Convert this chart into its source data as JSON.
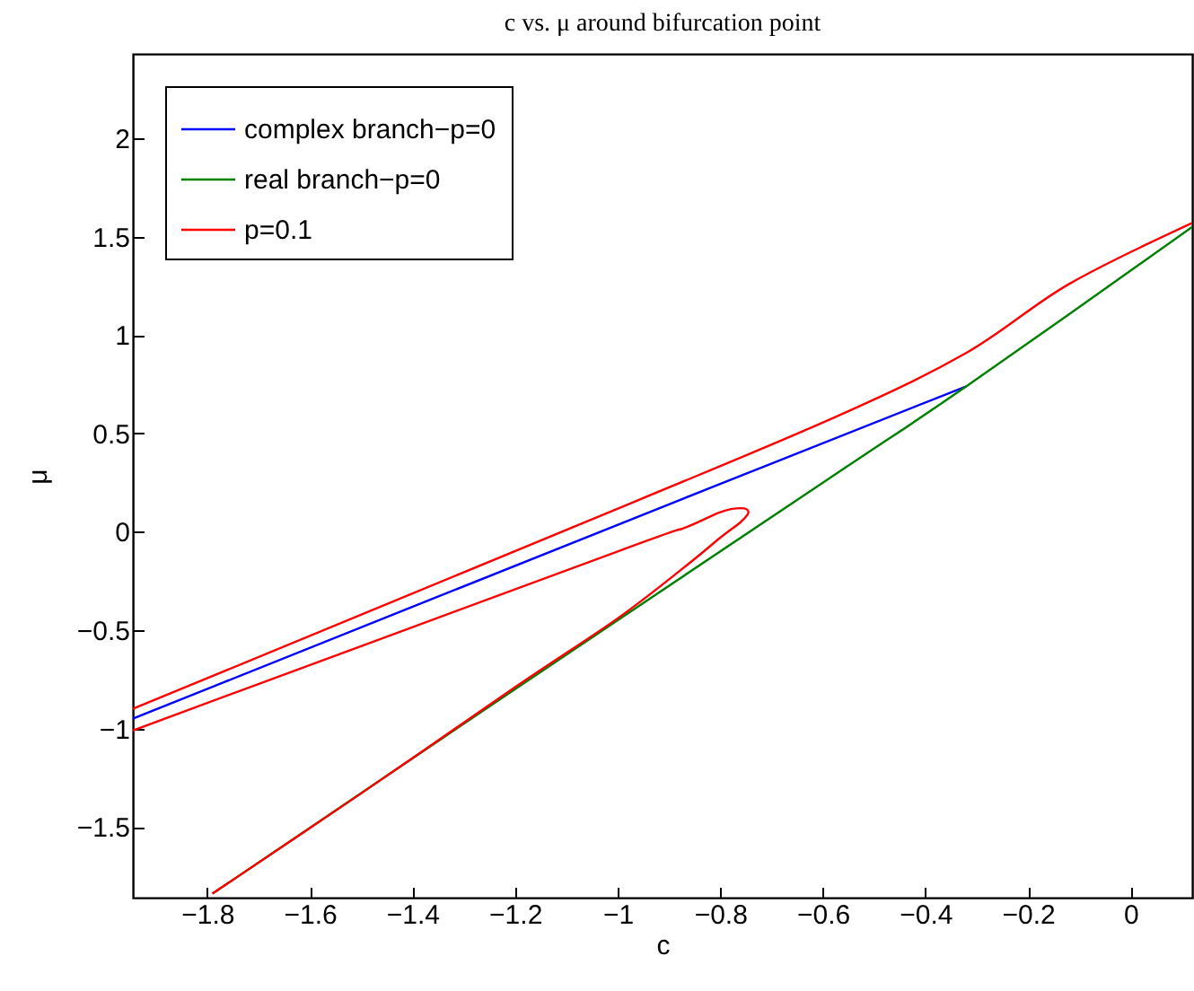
{
  "chart_data": {
    "type": "line",
    "title": "c vs. μ around bifurcation point",
    "xlabel": "c",
    "ylabel": "μ",
    "xlim": [
      -1.945,
      0.12
    ],
    "ylim": [
      -1.86,
      2.43
    ],
    "xticks": [
      {
        "value": -1.8,
        "label": "−1.8"
      },
      {
        "value": -1.6,
        "label": "−1.6"
      },
      {
        "value": -1.4,
        "label": "−1.4"
      },
      {
        "value": -1.2,
        "label": "−1.2"
      },
      {
        "value": -1,
        "label": "−1"
      },
      {
        "value": -0.8,
        "label": "−0.8"
      },
      {
        "value": -0.6,
        "label": "−0.6"
      },
      {
        "value": -0.4,
        "label": "−0.4"
      },
      {
        "value": -0.2,
        "label": "−0.2"
      },
      0
    ],
    "yticks": [
      {
        "value": -1.5,
        "label": "−1.5"
      },
      {
        "value": -1,
        "label": "−1"
      },
      {
        "value": -0.5,
        "label": "−0.5"
      },
      0,
      0.5,
      1,
      1.5,
      2
    ],
    "legend": "top left",
    "grid": false,
    "marker": "none",
    "line_style": "solid",
    "series": [
      {
        "name": "complex branch−p=0",
        "color": "#0000ff",
        "x": [
          -1.945,
          -0.89,
          -0.32
        ],
        "values": [
          -0.95,
          0.15,
          0.74
        ]
      },
      {
        "name": "real branch−p=0",
        "color": "#008000",
        "x": [
          -1.79,
          -1.2,
          -0.6,
          -0.32,
          0.12
        ],
        "values": [
          -1.84,
          -0.8,
          0.25,
          0.74,
          1.55
        ]
      },
      {
        "name": "p=0.1",
        "color": "#ff0000",
        "x": [
          -1.79,
          -1.5,
          -1.2,
          -1.0,
          -0.87,
          -0.8,
          -0.76,
          -0.745,
          -0.76,
          -0.8,
          -0.87,
          -1.0,
          -1.945,
          null,
          -1.945,
          -0.97,
          -0.57,
          -0.32,
          -0.12,
          0.12
        ],
        "values": [
          -1.84,
          -1.33,
          -0.79,
          -0.44,
          -0.18,
          -0.03,
          0.05,
          0.1,
          0.12,
          0.1,
          0.02,
          -0.1,
          -1.01,
          null,
          -0.9,
          0.15,
          0.59,
          0.91,
          1.26,
          1.57
        ]
      }
    ]
  }
}
